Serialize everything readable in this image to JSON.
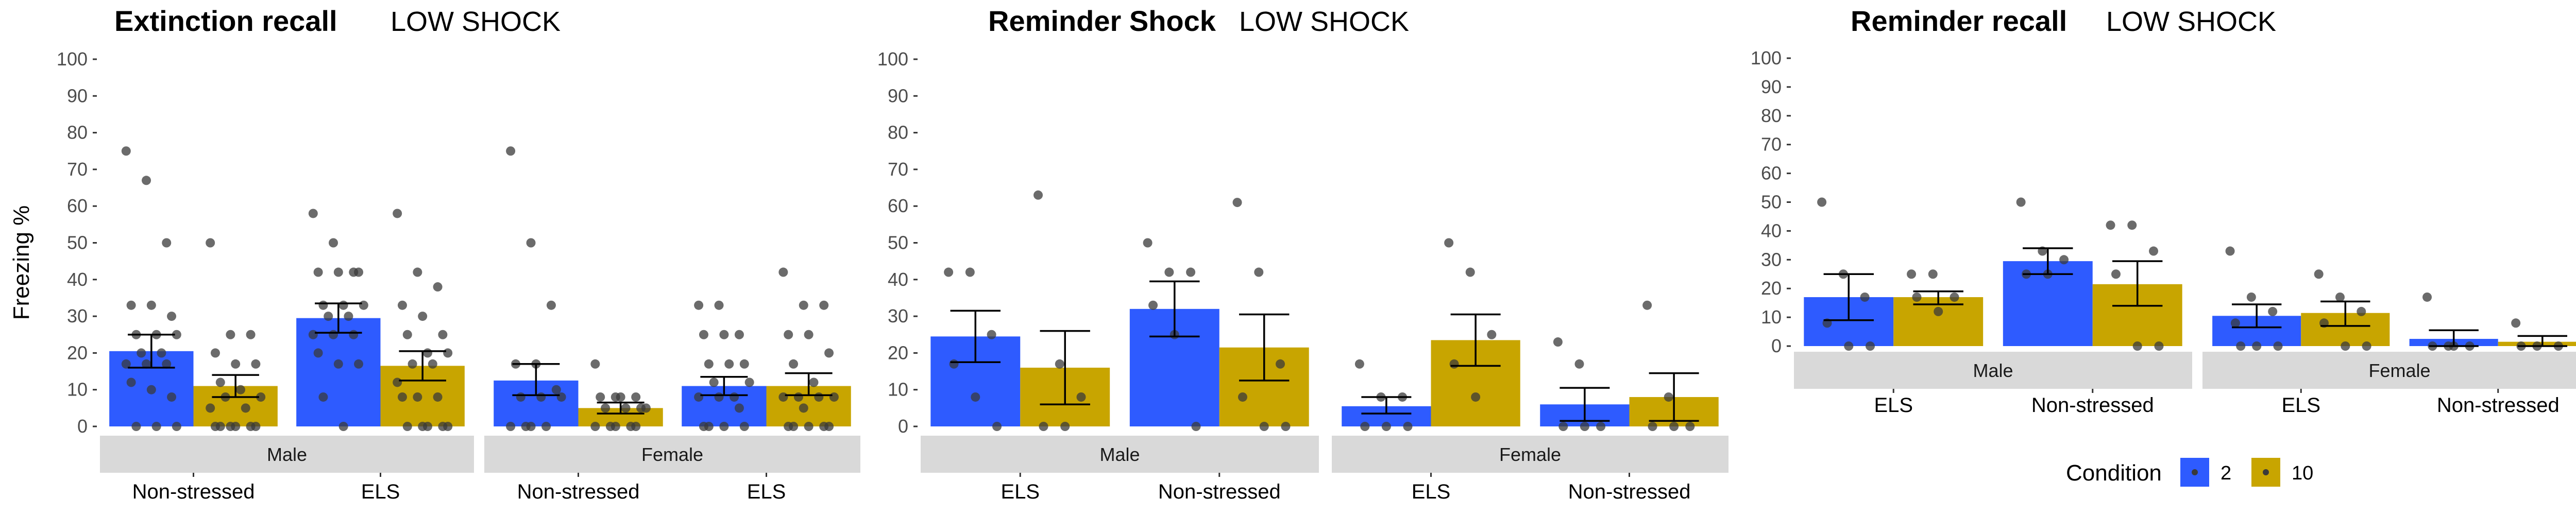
{
  "colors": {
    "condition_2": "#2E5BFF",
    "condition_10": "#C8A500",
    "strip": "#D9D9D9",
    "point": "#3a3a3a",
    "errorbar": "#000000"
  },
  "y_axis_label": "Freezing %",
  "legend": {
    "title": "Condition",
    "items": [
      "2",
      "10"
    ],
    "placement": "bottom-right"
  },
  "chart_data": [
    {
      "type": "bar",
      "title": "Extinction recall",
      "subtitle": "LOW SHOCK",
      "ylabel": "Freezing %",
      "ylim": [
        0,
        100
      ],
      "yticks": [
        0,
        10,
        20,
        30,
        40,
        50,
        60,
        70,
        80,
        90,
        100
      ],
      "series_names": [
        "2",
        "10"
      ],
      "facets": [
        {
          "label": "Male",
          "categories": [
            "Non-stressed",
            "ELS"
          ],
          "groups": [
            {
              "category": "Non-stressed",
              "bars": [
                {
                  "condition": "2",
                  "mean": 20.5,
                  "se_low": 16,
                  "se_high": 25,
                  "points": [
                    75,
                    67,
                    50,
                    33,
                    33,
                    30,
                    25,
                    25,
                    25,
                    20,
                    20,
                    17,
                    17,
                    17,
                    12,
                    10,
                    8,
                    0,
                    0,
                    0
                  ]
                },
                {
                  "condition": "10",
                  "mean": 11,
                  "se_low": 8,
                  "se_high": 14,
                  "points": [
                    50,
                    25,
                    25,
                    20,
                    17,
                    17,
                    12,
                    10,
                    8,
                    8,
                    5,
                    5,
                    0,
                    0,
                    0,
                    0,
                    0,
                    0
                  ]
                }
              ]
            },
            {
              "category": "ELS",
              "bars": [
                {
                  "condition": "2",
                  "mean": 29.5,
                  "se_low": 25.5,
                  "se_high": 33.5,
                  "points": [
                    58,
                    50,
                    42,
                    42,
                    42,
                    42,
                    33,
                    33,
                    33,
                    30,
                    30,
                    25,
                    25,
                    25,
                    20,
                    17,
                    17,
                    8,
                    0
                  ]
                },
                {
                  "condition": "10",
                  "mean": 16.5,
                  "se_low": 12.5,
                  "se_high": 20.5,
                  "points": [
                    58,
                    42,
                    38,
                    33,
                    30,
                    25,
                    25,
                    20,
                    20,
                    17,
                    17,
                    12,
                    8,
                    8,
                    8,
                    0,
                    0,
                    0,
                    0,
                    0
                  ]
                }
              ]
            }
          ]
        },
        {
          "label": "Female",
          "categories": [
            "Non-stressed",
            "ELS"
          ],
          "groups": [
            {
              "category": "Non-stressed",
              "bars": [
                {
                  "condition": "2",
                  "mean": 12.5,
                  "se_low": 8.5,
                  "se_high": 17,
                  "points": [
                    75,
                    50,
                    33,
                    17,
                    17,
                    10,
                    8,
                    8,
                    8,
                    0,
                    0,
                    0,
                    0
                  ]
                },
                {
                  "condition": "10",
                  "mean": 5,
                  "se_low": 3.5,
                  "se_high": 6.5,
                  "points": [
                    17,
                    8,
                    8,
                    8,
                    8,
                    5,
                    5,
                    5,
                    5,
                    0,
                    0,
                    0,
                    0,
                    0
                  ]
                }
              ]
            },
            {
              "category": "ELS",
              "bars": [
                {
                  "condition": "2",
                  "mean": 11,
                  "se_low": 8.5,
                  "se_high": 13.5,
                  "points": [
                    33,
                    33,
                    25,
                    25,
                    25,
                    17,
                    17,
                    17,
                    12,
                    12,
                    8,
                    8,
                    8,
                    5,
                    0,
                    0,
                    0,
                    0
                  ]
                },
                {
                  "condition": "10",
                  "mean": 11,
                  "se_low": 8.5,
                  "se_high": 14.5,
                  "points": [
                    42,
                    33,
                    33,
                    25,
                    25,
                    20,
                    17,
                    12,
                    8,
                    8,
                    8,
                    8,
                    5,
                    0,
                    0,
                    0,
                    0,
                    0
                  ]
                }
              ]
            }
          ]
        }
      ]
    },
    {
      "type": "bar",
      "title": "Reminder Shock",
      "subtitle": "LOW SHOCK",
      "ylabel": "",
      "ylim": [
        0,
        100
      ],
      "yticks": [
        0,
        10,
        20,
        30,
        40,
        50,
        60,
        70,
        80,
        90,
        100
      ],
      "series_names": [
        "2",
        "10"
      ],
      "facets": [
        {
          "label": "Male",
          "categories": [
            "ELS",
            "Non-stressed"
          ],
          "groups": [
            {
              "category": "ELS",
              "bars": [
                {
                  "condition": "2",
                  "mean": 24.5,
                  "se_low": 17.5,
                  "se_high": 31.5,
                  "points": [
                    42,
                    42,
                    25,
                    17,
                    8,
                    0
                  ]
                },
                {
                  "condition": "10",
                  "mean": 16,
                  "se_low": 6,
                  "se_high": 26,
                  "points": [
                    63,
                    17,
                    8,
                    0,
                    0
                  ]
                }
              ]
            },
            {
              "category": "Non-stressed",
              "bars": [
                {
                  "condition": "2",
                  "mean": 32,
                  "se_low": 24.5,
                  "se_high": 39.5,
                  "points": [
                    50,
                    42,
                    42,
                    33,
                    25,
                    0
                  ]
                },
                {
                  "condition": "10",
                  "mean": 21.5,
                  "se_low": 12.5,
                  "se_high": 30.5,
                  "points": [
                    61,
                    42,
                    17,
                    8,
                    0,
                    0
                  ]
                }
              ]
            }
          ]
        },
        {
          "label": "Female",
          "categories": [
            "ELS",
            "Non-stressed"
          ],
          "groups": [
            {
              "category": "ELS",
              "bars": [
                {
                  "condition": "2",
                  "mean": 5.5,
                  "se_low": 3.5,
                  "se_high": 8,
                  "points": [
                    17,
                    8,
                    8,
                    0,
                    0,
                    0
                  ]
                },
                {
                  "condition": "10",
                  "mean": 23.5,
                  "se_low": 16.5,
                  "se_high": 30.5,
                  "points": [
                    50,
                    42,
                    25,
                    17,
                    8
                  ]
                }
              ]
            },
            {
              "category": "Non-stressed",
              "bars": [
                {
                  "condition": "2",
                  "mean": 6,
                  "se_low": 1.5,
                  "se_high": 10.5,
                  "points": [
                    23,
                    17,
                    0,
                    0,
                    0
                  ]
                },
                {
                  "condition": "10",
                  "mean": 8,
                  "se_low": 1.5,
                  "se_high": 14.5,
                  "points": [
                    33,
                    8,
                    0,
                    0,
                    0
                  ]
                }
              ]
            }
          ]
        }
      ]
    },
    {
      "type": "bar",
      "title": "Reminder recall",
      "subtitle": "LOW SHOCK",
      "ylabel": "",
      "ylim": [
        0,
        100
      ],
      "yticks": [
        0,
        10,
        20,
        30,
        40,
        50,
        60,
        70,
        80,
        90,
        100
      ],
      "series_names": [
        "2",
        "10"
      ],
      "facets": [
        {
          "label": "Male",
          "categories": [
            "ELS",
            "Non-stressed"
          ],
          "groups": [
            {
              "category": "ELS",
              "bars": [
                {
                  "condition": "2",
                  "mean": 17,
                  "se_low": 9,
                  "se_high": 25,
                  "points": [
                    50,
                    25,
                    17,
                    8,
                    0,
                    0
                  ]
                },
                {
                  "condition": "10",
                  "mean": 17,
                  "se_low": 14.5,
                  "se_high": 19,
                  "points": [
                    25,
                    25,
                    17,
                    17,
                    12
                  ]
                }
              ]
            },
            {
              "category": "Non-stressed",
              "bars": [
                {
                  "condition": "2",
                  "mean": 29.5,
                  "se_low": 25,
                  "se_high": 34,
                  "points": [
                    50,
                    33,
                    30,
                    25,
                    25
                  ]
                },
                {
                  "condition": "10",
                  "mean": 21.5,
                  "se_low": 14,
                  "se_high": 29.5,
                  "points": [
                    42,
                    42,
                    33,
                    25,
                    0,
                    0
                  ]
                }
              ]
            }
          ]
        },
        {
          "label": "Female",
          "categories": [
            "ELS",
            "Non-stressed"
          ],
          "groups": [
            {
              "category": "ELS",
              "bars": [
                {
                  "condition": "2",
                  "mean": 10.5,
                  "se_low": 6.5,
                  "se_high": 14.5,
                  "points": [
                    33,
                    17,
                    12,
                    8,
                    0,
                    0,
                    0
                  ]
                },
                {
                  "condition": "10",
                  "mean": 11.5,
                  "se_low": 7,
                  "se_high": 15.5,
                  "points": [
                    25,
                    17,
                    12,
                    8,
                    0,
                    0
                  ]
                }
              ]
            },
            {
              "category": "Non-stressed",
              "bars": [
                {
                  "condition": "2",
                  "mean": 2.5,
                  "se_low": 0,
                  "se_high": 5.5,
                  "points": [
                    17,
                    0,
                    0,
                    0,
                    0
                  ]
                },
                {
                  "condition": "10",
                  "mean": 1.5,
                  "se_low": 0,
                  "se_high": 3.5,
                  "points": [
                    8,
                    0,
                    0,
                    0
                  ]
                }
              ]
            }
          ]
        }
      ]
    }
  ]
}
